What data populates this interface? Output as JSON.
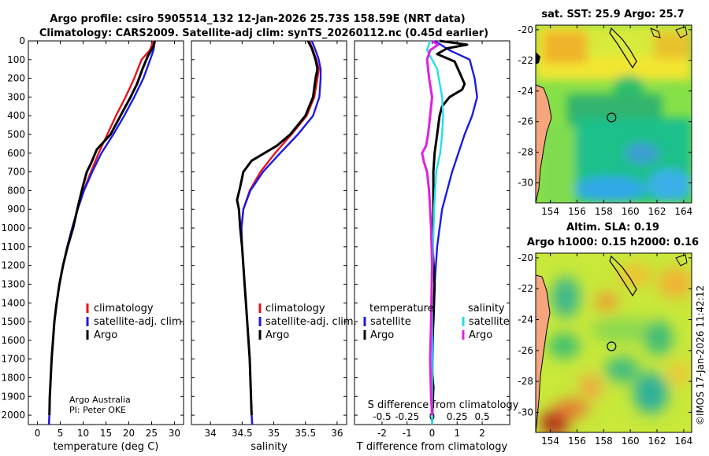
{
  "title": {
    "line1": "Argo profile: csiro 5905514_132 12-Jan-2026 25.73S 158.59E (NRT data)",
    "line2": "Climatology: CARS2009. Satellite-adj clim: synTS_20260112.nc (0.45d earlier)"
  },
  "credits": {
    "line1": "Argo Australia",
    "line2": "PI: Peter OKE"
  },
  "timestamp": "©IMOS 17-Jan-2026 11:42:12",
  "colors": {
    "climatology": "#e8141e",
    "satellite": "#1a1ae6",
    "argo": "#000000",
    "sat_s": "#22e0e8",
    "argo_s": "#e020e0",
    "land": "#f5a67c"
  },
  "chart_data": [
    {
      "type": "line",
      "name": "temperature-profile",
      "xlabel": "temperature (deg C)",
      "ylabel": "",
      "xlim": [
        -2,
        32
      ],
      "ylim": [
        2050,
        0
      ],
      "xticks": [
        0,
        5,
        10,
        15,
        20,
        25,
        30
      ],
      "yticks": [
        0,
        100,
        200,
        300,
        400,
        500,
        600,
        700,
        800,
        900,
        1000,
        1100,
        1200,
        1300,
        1400,
        1500,
        1600,
        1700,
        1800,
        1900,
        2000
      ],
      "legend": [
        "climatology",
        "satellite-adj. clim.",
        "Argo"
      ],
      "series": [
        {
          "name": "climatology",
          "points": [
            [
              25.4,
              0
            ],
            [
              24.6,
              50
            ],
            [
              22.8,
              100
            ],
            [
              21.2,
              200
            ],
            [
              19.3,
              300
            ],
            [
              17.2,
              400
            ],
            [
              15.3,
              500
            ],
            [
              13.4,
              600
            ],
            [
              11.7,
              700
            ],
            [
              10.1,
              800
            ],
            [
              8.8,
              900
            ],
            [
              7.6,
              1000
            ],
            [
              6.5,
              1100
            ],
            [
              5.6,
              1200
            ],
            [
              4.8,
              1300
            ],
            [
              4.2,
              1400
            ],
            [
              3.7,
              1500
            ],
            [
              3.4,
              1600
            ],
            [
              3.1,
              1700
            ],
            [
              2.9,
              1800
            ],
            [
              2.7,
              1900
            ],
            [
              2.6,
              2000
            ],
            [
              2.5,
              2050
            ]
          ]
        },
        {
          "name": "satellite-adj. clim.",
          "points": [
            [
              25.7,
              0
            ],
            [
              25.4,
              50
            ],
            [
              24.7,
              100
            ],
            [
              23.2,
              200
            ],
            [
              21.2,
              300
            ],
            [
              19.0,
              400
            ],
            [
              16.6,
              500
            ],
            [
              14.0,
              600
            ],
            [
              12.0,
              700
            ],
            [
              10.2,
              800
            ],
            [
              8.8,
              900
            ],
            [
              7.6,
              1000
            ],
            [
              6.5,
              1100
            ],
            [
              5.6,
              1200
            ],
            [
              4.8,
              1300
            ],
            [
              4.2,
              1400
            ],
            [
              3.7,
              1500
            ],
            [
              3.4,
              1600
            ],
            [
              3.1,
              1700
            ],
            [
              2.9,
              1800
            ],
            [
              2.7,
              1900
            ],
            [
              2.6,
              2000
            ],
            [
              2.5,
              2050
            ]
          ]
        },
        {
          "name": "Argo",
          "points": [
            [
              25.7,
              0
            ],
            [
              25.4,
              30
            ],
            [
              24.2,
              80
            ],
            [
              23.0,
              150
            ],
            [
              21.8,
              230
            ],
            [
              20.4,
              300
            ],
            [
              18.2,
              400
            ],
            [
              16.0,
              500
            ],
            [
              13.0,
              580
            ],
            [
              11.8,
              650
            ],
            [
              10.8,
              700
            ],
            [
              9.9,
              780
            ],
            [
              8.9,
              880
            ],
            [
              7.8,
              1000
            ],
            [
              6.6,
              1100
            ],
            [
              5.6,
              1200
            ],
            [
              4.8,
              1300
            ],
            [
              4.2,
              1400
            ],
            [
              3.7,
              1500
            ],
            [
              3.4,
              1600
            ],
            [
              3.1,
              1700
            ],
            [
              2.9,
              1800
            ],
            [
              2.7,
              1900
            ],
            [
              2.6,
              2000
            ]
          ]
        }
      ]
    },
    {
      "type": "line",
      "name": "salinity-profile",
      "xlabel": "salinity",
      "xlim": [
        33.7,
        36.15
      ],
      "ylim": [
        2050,
        0
      ],
      "xticks": [
        34,
        34.5,
        35,
        35.5,
        36
      ],
      "legend": [
        "climatology",
        "satellite-adj. clim.",
        "Argo"
      ],
      "series": [
        {
          "name": "climatology",
          "points": [
            [
              35.56,
              0
            ],
            [
              35.62,
              50
            ],
            [
              35.67,
              100
            ],
            [
              35.71,
              150
            ],
            [
              35.69,
              200
            ],
            [
              35.64,
              300
            ],
            [
              35.52,
              400
            ],
            [
              35.28,
              500
            ],
            [
              35.02,
              600
            ],
            [
              34.79,
              700
            ],
            [
              34.62,
              800
            ],
            [
              34.52,
              900
            ],
            [
              34.49,
              1000
            ],
            [
              34.5,
              1100
            ],
            [
              34.52,
              1200
            ],
            [
              34.54,
              1300
            ],
            [
              34.56,
              1400
            ],
            [
              34.58,
              1500
            ],
            [
              34.6,
              1600
            ],
            [
              34.62,
              1700
            ],
            [
              34.63,
              1800
            ],
            [
              34.64,
              1900
            ],
            [
              34.65,
              2000
            ],
            [
              34.66,
              2050
            ]
          ]
        },
        {
          "name": "satellite-adj. clim.",
          "points": [
            [
              35.6,
              0
            ],
            [
              35.66,
              50
            ],
            [
              35.71,
              100
            ],
            [
              35.74,
              150
            ],
            [
              35.74,
              200
            ],
            [
              35.72,
              300
            ],
            [
              35.62,
              400
            ],
            [
              35.38,
              500
            ],
            [
              35.1,
              600
            ],
            [
              34.83,
              700
            ],
            [
              34.63,
              800
            ],
            [
              34.52,
              900
            ],
            [
              34.49,
              1000
            ],
            [
              34.5,
              1100
            ],
            [
              34.52,
              1200
            ],
            [
              34.54,
              1300
            ],
            [
              34.56,
              1400
            ],
            [
              34.58,
              1500
            ],
            [
              34.6,
              1600
            ],
            [
              34.62,
              1700
            ],
            [
              34.63,
              1800
            ],
            [
              34.64,
              1900
            ],
            [
              34.65,
              2000
            ],
            [
              34.66,
              2050
            ]
          ]
        },
        {
          "name": "Argo",
          "points": [
            [
              35.54,
              0
            ],
            [
              35.6,
              40
            ],
            [
              35.66,
              100
            ],
            [
              35.69,
              150
            ],
            [
              35.66,
              200
            ],
            [
              35.62,
              300
            ],
            [
              35.5,
              400
            ],
            [
              35.26,
              500
            ],
            [
              35.05,
              560
            ],
            [
              34.85,
              600
            ],
            [
              34.65,
              640
            ],
            [
              34.52,
              700
            ],
            [
              34.47,
              780
            ],
            [
              34.42,
              850
            ],
            [
              34.45,
              900
            ],
            [
              34.47,
              1000
            ],
            [
              34.5,
              1100
            ],
            [
              34.52,
              1200
            ],
            [
              34.54,
              1300
            ],
            [
              34.56,
              1400
            ],
            [
              34.58,
              1500
            ],
            [
              34.6,
              1600
            ],
            [
              34.62,
              1700
            ],
            [
              34.63,
              1800
            ],
            [
              34.64,
              1900
            ],
            [
              34.65,
              2000
            ]
          ]
        }
      ]
    },
    {
      "type": "line",
      "name": "difference-profile",
      "xlabel": "T difference from climatology",
      "x2label": "S difference from climatology",
      "xlim": [
        -3.1,
        3.1
      ],
      "x2lim": [
        -0.775,
        0.775
      ],
      "ylim": [
        2050,
        0
      ],
      "xticks": [
        -2,
        -1,
        0,
        1,
        2
      ],
      "x2ticks": [
        -0.5,
        -0.25,
        0,
        0.25,
        0.5
      ],
      "x2ticklabels": [
        "-0.5",
        "-0.25",
        "0",
        "0.25",
        "0.5"
      ],
      "legend_headers": [
        "temperature",
        "salinity"
      ],
      "legend": [
        "satellite",
        "Argo",
        "satellite",
        "Argo"
      ],
      "series": [
        {
          "name": "temperature satellite",
          "axis": "T",
          "points": [
            [
              0.1,
              0
            ],
            [
              0.7,
              50
            ],
            [
              1.5,
              100
            ],
            [
              1.7,
              200
            ],
            [
              1.8,
              300
            ],
            [
              1.6,
              400
            ],
            [
              1.3,
              500
            ],
            [
              0.8,
              700
            ],
            [
              0.4,
              900
            ],
            [
              0.2,
              1100
            ],
            [
              0.1,
              1300
            ],
            [
              0.05,
              1500
            ],
            [
              0.02,
              1700
            ],
            [
              0.01,
              1900
            ],
            [
              0,
              2050
            ]
          ]
        },
        {
          "name": "temperature Argo",
          "axis": "T",
          "points": [
            [
              0.3,
              0
            ],
            [
              1.4,
              20
            ],
            [
              0.6,
              40
            ],
            [
              0.2,
              70
            ],
            [
              0.9,
              110
            ],
            [
              1.1,
              170
            ],
            [
              1.3,
              230
            ],
            [
              1.2,
              260
            ],
            [
              0.7,
              300
            ],
            [
              0.4,
              350
            ],
            [
              0.3,
              400
            ],
            [
              0.2,
              500
            ],
            [
              0.1,
              600
            ],
            [
              0.05,
              700
            ],
            [
              0.05,
              900
            ],
            [
              0.02,
              1100
            ],
            [
              0.1,
              1300
            ],
            [
              0.05,
              1500
            ],
            [
              -0.05,
              1700
            ],
            [
              0.05,
              1850
            ],
            [
              0,
              2000
            ]
          ]
        },
        {
          "name": "salinity satellite",
          "axis": "S",
          "points": [
            [
              -0.02,
              0
            ],
            [
              -0.05,
              50
            ],
            [
              0.05,
              150
            ],
            [
              0.1,
              300
            ],
            [
              0.11,
              400
            ],
            [
              0.1,
              500
            ],
            [
              0.08,
              600
            ],
            [
              0.04,
              700
            ],
            [
              0.02,
              900
            ],
            [
              0.01,
              1100
            ],
            [
              0,
              1300
            ],
            [
              0,
              2050
            ]
          ]
        },
        {
          "name": "salinity Argo",
          "axis": "S",
          "points": [
            [
              0.0,
              0
            ],
            [
              0.06,
              20
            ],
            [
              -0.02,
              50
            ],
            [
              -0.05,
              100
            ],
            [
              -0.03,
              200
            ],
            [
              0.0,
              300
            ],
            [
              -0.02,
              400
            ],
            [
              -0.04,
              500
            ],
            [
              -0.06,
              560
            ],
            [
              -0.1,
              600
            ],
            [
              -0.08,
              650
            ],
            [
              -0.05,
              700
            ],
            [
              -0.03,
              800
            ],
            [
              -0.02,
              900
            ],
            [
              -0.01,
              1000
            ],
            [
              0,
              1200
            ],
            [
              -0.01,
              1500
            ],
            [
              -0.02,
              1700
            ],
            [
              -0.01,
              1900
            ],
            [
              0,
              2000
            ]
          ]
        }
      ]
    },
    {
      "type": "heatmap",
      "name": "sst-map",
      "title": "sat. SST: 25.9 Argo: 25.7",
      "xticks": [
        154,
        156,
        158,
        160,
        162,
        164
      ],
      "yticks": [
        -20,
        -22,
        -24,
        -26,
        -28,
        -30
      ],
      "xlim": [
        152.9,
        164.6
      ],
      "ylim": [
        -31.3,
        -19.7
      ],
      "profile_location": [
        158.59,
        -25.73
      ]
    },
    {
      "type": "heatmap",
      "name": "sla-map",
      "title": "Altim. SLA: 0.19",
      "subtitle": "Argo h1000: 0.15 h2000: 0.16",
      "xticks": [
        154,
        156,
        158,
        160,
        162,
        164
      ],
      "yticks": [
        -20,
        -22,
        -24,
        -26,
        -28,
        -30
      ],
      "xlim": [
        152.9,
        164.6
      ],
      "ylim": [
        -31.3,
        -19.7
      ],
      "profile_location": [
        158.59,
        -25.73
      ]
    }
  ]
}
